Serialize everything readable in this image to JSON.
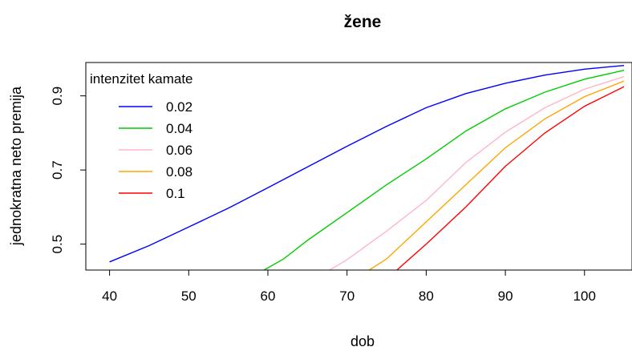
{
  "chart_data": {
    "type": "line",
    "title": "žene",
    "xlabel": "dob",
    "ylabel": "jednokratna neto premija",
    "xlim": [
      37,
      106
    ],
    "ylim": [
      0.43,
      0.99
    ],
    "x_ticks": [
      40,
      50,
      60,
      70,
      80,
      90,
      100
    ],
    "y_ticks": [
      0.5,
      0.7,
      0.9
    ],
    "grid": false,
    "legend": {
      "title": "intenzitet kamate",
      "position": "top-left"
    },
    "series": [
      {
        "name": "0.02",
        "color": "#0000ff",
        "x": [
          40,
          45,
          50,
          55,
          60,
          65,
          70,
          75,
          80,
          85,
          90,
          95,
          100,
          105
        ],
        "y": [
          0.452,
          0.496,
          0.546,
          0.597,
          0.652,
          0.708,
          0.764,
          0.818,
          0.868,
          0.906,
          0.934,
          0.956,
          0.972,
          0.982
        ]
      },
      {
        "name": "0.04",
        "color": "#00cc00",
        "x": [
          59.5,
          62,
          65,
          70,
          75,
          80,
          85,
          90,
          95,
          100,
          105
        ],
        "y": [
          0.43,
          0.46,
          0.51,
          0.585,
          0.66,
          0.73,
          0.805,
          0.865,
          0.91,
          0.945,
          0.969
        ]
      },
      {
        "name": "0.06",
        "color": "#ffb6c8",
        "x": [
          67.8,
          70,
          75,
          80,
          85,
          90,
          95,
          100,
          105
        ],
        "y": [
          0.43,
          0.458,
          0.535,
          0.618,
          0.72,
          0.802,
          0.868,
          0.918,
          0.952
        ]
      },
      {
        "name": "0.08",
        "color": "#ffa500",
        "x": [
          72.8,
          75,
          80,
          85,
          90,
          95,
          100,
          105
        ],
        "y": [
          0.43,
          0.46,
          0.56,
          0.66,
          0.76,
          0.838,
          0.898,
          0.94
        ]
      },
      {
        "name": "0.1",
        "color": "#ff0000",
        "x": [
          76.3,
          80,
          85,
          90,
          95,
          100,
          105
        ],
        "y": [
          0.43,
          0.5,
          0.6,
          0.71,
          0.8,
          0.872,
          0.925
        ]
      }
    ]
  }
}
